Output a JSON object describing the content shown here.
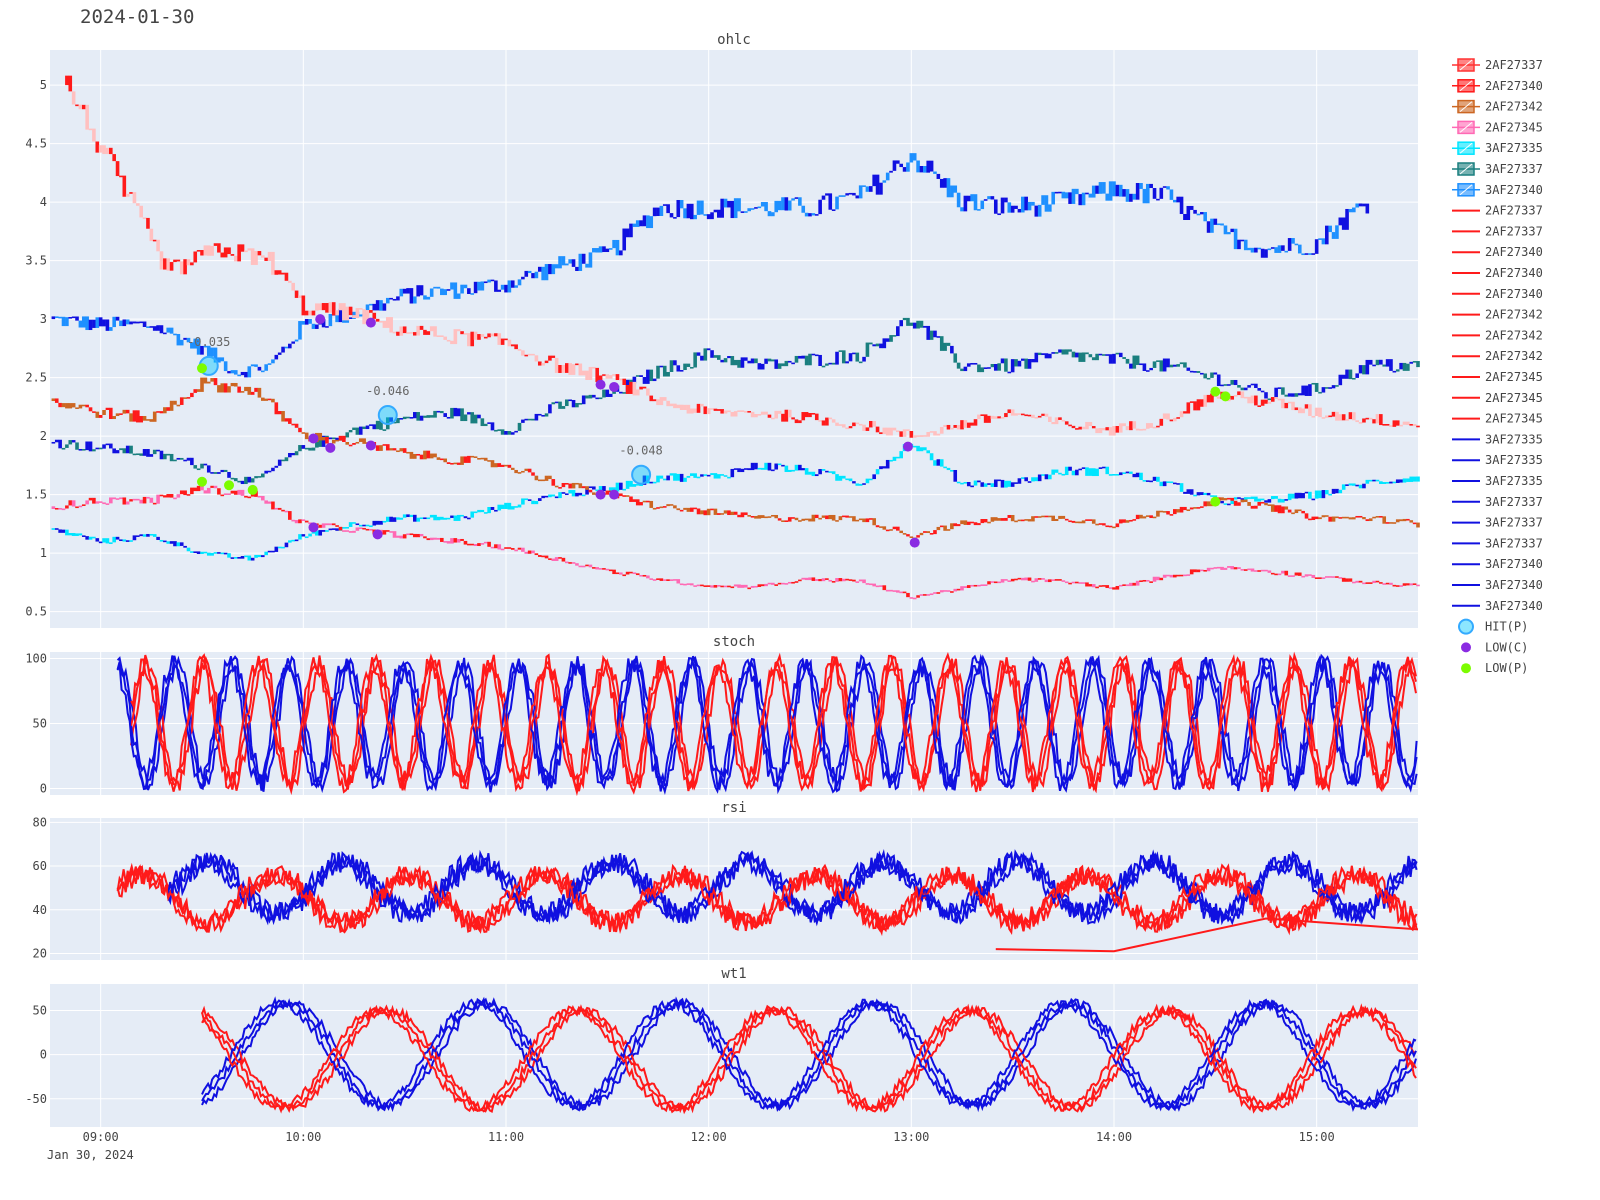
{
  "date_title": "2024-01-30",
  "date_sub": "Jan 30, 2024",
  "time_ticks": [
    "09:00",
    "10:00",
    "11:00",
    "12:00",
    "13:00",
    "14:00",
    "15:00"
  ],
  "panels": {
    "ohlc": {
      "title": "ohlc",
      "yticks": [
        "0.5",
        "1",
        "1.5",
        "2",
        "2.5",
        "3",
        "3.5",
        "4",
        "4.5",
        "5"
      ]
    },
    "stoch": {
      "title": "stoch",
      "yticks": [
        "0",
        "50",
        "100"
      ]
    },
    "rsi": {
      "title": "rsi",
      "yticks": [
        "20",
        "40",
        "60",
        "80"
      ]
    },
    "wt1": {
      "title": "wt1",
      "yticks": [
        "-50",
        "0",
        "50"
      ]
    }
  },
  "colors": {
    "plot_bg": "#e5ecf6",
    "grid": "#ffffff",
    "red": "#ff1a1a",
    "blue": "#1010e0",
    "hit": "#33aaff",
    "low_c": "#8a2be2",
    "low_p": "#7cfc00",
    "light_blue": "#1e90ff",
    "cyan": "#00ffff",
    "teal": "#1a7f7f",
    "orange": "#cc6622",
    "pink": "#ff69b4",
    "pale": "#ffcccc"
  },
  "legend": [
    {
      "label": "2AF27337",
      "kind": "candle",
      "color": "#ff3333"
    },
    {
      "label": "2AF27340",
      "kind": "candle",
      "color": "#ff1a1a"
    },
    {
      "label": "2AF27342",
      "kind": "candle",
      "color": "#cc6622"
    },
    {
      "label": "2AF27345",
      "kind": "candle",
      "color": "#ff69b4"
    },
    {
      "label": "3AF27335",
      "kind": "candle",
      "color": "#00e5ff"
    },
    {
      "label": "3AF27337",
      "kind": "candle",
      "color": "#1a7f7f"
    },
    {
      "label": "3AF27340",
      "kind": "candle",
      "color": "#1e90ff"
    },
    {
      "label": "2AF27337",
      "kind": "line",
      "color": "#ff1a1a"
    },
    {
      "label": "2AF27337",
      "kind": "line",
      "color": "#ff1a1a"
    },
    {
      "label": "2AF27340",
      "kind": "line",
      "color": "#ff1a1a"
    },
    {
      "label": "2AF27340",
      "kind": "line",
      "color": "#ff1a1a"
    },
    {
      "label": "2AF27340",
      "kind": "line",
      "color": "#ff1a1a"
    },
    {
      "label": "2AF27342",
      "kind": "line",
      "color": "#ff1a1a"
    },
    {
      "label": "2AF27342",
      "kind": "line",
      "color": "#ff1a1a"
    },
    {
      "label": "2AF27342",
      "kind": "line",
      "color": "#ff1a1a"
    },
    {
      "label": "2AF27345",
      "kind": "line",
      "color": "#ff1a1a"
    },
    {
      "label": "2AF27345",
      "kind": "line",
      "color": "#ff1a1a"
    },
    {
      "label": "2AF27345",
      "kind": "line",
      "color": "#ff1a1a"
    },
    {
      "label": "3AF27335",
      "kind": "line",
      "color": "#1010e0"
    },
    {
      "label": "3AF27335",
      "kind": "line",
      "color": "#1010e0"
    },
    {
      "label": "3AF27335",
      "kind": "line",
      "color": "#1010e0"
    },
    {
      "label": "3AF27337",
      "kind": "line",
      "color": "#1010e0"
    },
    {
      "label": "3AF27337",
      "kind": "line",
      "color": "#1010e0"
    },
    {
      "label": "3AF27337",
      "kind": "line",
      "color": "#1010e0"
    },
    {
      "label": "3AF27340",
      "kind": "line",
      "color": "#1010e0"
    },
    {
      "label": "3AF27340",
      "kind": "line",
      "color": "#1010e0"
    },
    {
      "label": "3AF27340",
      "kind": "line",
      "color": "#1010e0"
    },
    {
      "label": "HIT(P)",
      "kind": "hit",
      "color": "#33aaff"
    },
    {
      "label": "LOW(C)",
      "kind": "dot",
      "color": "#8a2be2"
    },
    {
      "label": "LOW(P)",
      "kind": "dot",
      "color": "#7cfc00"
    }
  ],
  "chart_data": {
    "type": "line",
    "title": "2024-01-30",
    "x_range": [
      "08:45",
      "15:30"
    ],
    "panels": [
      "ohlc",
      "stoch",
      "rsi",
      "wt1"
    ],
    "ohlc_ylim": [
      0.36,
      5.3
    ],
    "stoch_ylim": [
      -5,
      105
    ],
    "rsi_ylim": [
      17,
      82
    ],
    "wt1_ylim": [
      -82,
      80
    ],
    "price_series": [
      {
        "name": "3AF27340",
        "color": "#1010e0",
        "alt": "#1e90ff",
        "points": [
          [
            "08:46",
            3.0
          ],
          [
            "09:00",
            2.95
          ],
          [
            "09:15",
            2.95
          ],
          [
            "09:30",
            2.75
          ],
          [
            "09:40",
            2.55
          ],
          [
            "09:50",
            2.6
          ],
          [
            "10:00",
            2.95
          ],
          [
            "10:15",
            3.05
          ],
          [
            "10:30",
            3.2
          ],
          [
            "10:45",
            3.25
          ],
          [
            "11:00",
            3.3
          ],
          [
            "11:15",
            3.45
          ],
          [
            "11:30",
            3.55
          ],
          [
            "11:45",
            3.95
          ],
          [
            "12:00",
            3.95
          ],
          [
            "12:15",
            3.95
          ],
          [
            "12:30",
            3.95
          ],
          [
            "12:45",
            4.05
          ],
          [
            "13:00",
            4.4
          ],
          [
            "13:15",
            4.0
          ],
          [
            "13:30",
            3.95
          ],
          [
            "13:45",
            4.0
          ],
          [
            "14:00",
            4.1
          ],
          [
            "14:15",
            4.05
          ],
          [
            "14:30",
            3.75
          ],
          [
            "14:45",
            3.6
          ],
          [
            "15:00",
            3.65
          ],
          [
            "15:10",
            3.9
          ],
          [
            "15:15",
            4.0
          ]
        ]
      },
      {
        "name": "3AF27337",
        "color": "#1010e0",
        "alt": "#1a7f7f",
        "points": [
          [
            "08:46",
            1.95
          ],
          [
            "09:00",
            1.9
          ],
          [
            "09:15",
            1.85
          ],
          [
            "09:30",
            1.75
          ],
          [
            "09:45",
            1.6
          ],
          [
            "10:00",
            1.9
          ],
          [
            "10:15",
            2.05
          ],
          [
            "10:30",
            2.15
          ],
          [
            "10:45",
            2.2
          ],
          [
            "11:00",
            2.05
          ],
          [
            "11:15",
            2.25
          ],
          [
            "11:30",
            2.35
          ],
          [
            "11:45",
            2.55
          ],
          [
            "12:00",
            2.7
          ],
          [
            "12:15",
            2.6
          ],
          [
            "12:30",
            2.65
          ],
          [
            "12:45",
            2.7
          ],
          [
            "13:00",
            3.0
          ],
          [
            "13:15",
            2.6
          ],
          [
            "13:30",
            2.6
          ],
          [
            "13:45",
            2.7
          ],
          [
            "14:00",
            2.65
          ],
          [
            "14:15",
            2.6
          ],
          [
            "14:30",
            2.5
          ],
          [
            "14:45",
            2.35
          ],
          [
            "15:00",
            2.4
          ],
          [
            "15:15",
            2.6
          ],
          [
            "15:30",
            2.6
          ]
        ]
      },
      {
        "name": "3AF27335",
        "color": "#1010e0",
        "alt": "#00e5ff",
        "points": [
          [
            "08:46",
            1.2
          ],
          [
            "09:00",
            1.1
          ],
          [
            "09:15",
            1.15
          ],
          [
            "09:30",
            1.0
          ],
          [
            "09:45",
            0.95
          ],
          [
            "10:00",
            1.15
          ],
          [
            "10:15",
            1.25
          ],
          [
            "10:30",
            1.3
          ],
          [
            "10:45",
            1.3
          ],
          [
            "11:00",
            1.4
          ],
          [
            "11:15",
            1.5
          ],
          [
            "11:30",
            1.55
          ],
          [
            "11:45",
            1.65
          ],
          [
            "12:00",
            1.65
          ],
          [
            "12:15",
            1.75
          ],
          [
            "12:30",
            1.7
          ],
          [
            "12:45",
            1.6
          ],
          [
            "13:00",
            1.95
          ],
          [
            "13:15",
            1.6
          ],
          [
            "13:30",
            1.6
          ],
          [
            "13:45",
            1.7
          ],
          [
            "14:00",
            1.7
          ],
          [
            "14:15",
            1.6
          ],
          [
            "14:30",
            1.45
          ],
          [
            "14:45",
            1.45
          ],
          [
            "15:00",
            1.5
          ],
          [
            "15:15",
            1.6
          ],
          [
            "15:30",
            1.65
          ]
        ]
      },
      {
        "name": "2AF27337",
        "color": "#ff1a1a",
        "alt": "#ffc0c0",
        "points": [
          [
            "08:50",
            5.0
          ],
          [
            "09:20",
            3.4
          ],
          [
            "09:35",
            3.6
          ],
          [
            "09:50",
            3.5
          ],
          [
            "10:00",
            3.1
          ],
          [
            "10:15",
            3.05
          ],
          [
            "10:30",
            2.9
          ],
          [
            "10:45",
            2.85
          ],
          [
            "11:00",
            2.8
          ],
          [
            "11:15",
            2.6
          ],
          [
            "11:30",
            2.5
          ],
          [
            "11:45",
            2.3
          ],
          [
            "12:00",
            2.2
          ],
          [
            "12:15",
            2.2
          ],
          [
            "12:30",
            2.15
          ],
          [
            "12:45",
            2.1
          ],
          [
            "13:00",
            2.0
          ],
          [
            "13:15",
            2.1
          ],
          [
            "13:30",
            2.2
          ],
          [
            "13:45",
            2.1
          ],
          [
            "14:00",
            2.05
          ],
          [
            "14:15",
            2.15
          ],
          [
            "14:30",
            2.35
          ],
          [
            "14:45",
            2.3
          ],
          [
            "15:00",
            2.2
          ],
          [
            "15:15",
            2.15
          ],
          [
            "15:30",
            2.1
          ]
        ]
      },
      {
        "name": "2AF27340",
        "color": "#ff1a1a",
        "alt": "#cc6622",
        "points": [
          [
            "08:46",
            2.3
          ],
          [
            "09:00",
            2.2
          ],
          [
            "09:15",
            2.15
          ],
          [
            "09:30",
            2.45
          ],
          [
            "09:45",
            2.4
          ],
          [
            "10:00",
            2.0
          ],
          [
            "10:15",
            1.95
          ],
          [
            "10:30",
            1.85
          ],
          [
            "10:45",
            1.8
          ],
          [
            "11:00",
            1.75
          ],
          [
            "11:15",
            1.6
          ],
          [
            "11:30",
            1.5
          ],
          [
            "11:45",
            1.4
          ],
          [
            "12:00",
            1.35
          ],
          [
            "12:15",
            1.3
          ],
          [
            "12:30",
            1.3
          ],
          [
            "12:45",
            1.3
          ],
          [
            "13:00",
            1.15
          ],
          [
            "13:15",
            1.25
          ],
          [
            "13:30",
            1.3
          ],
          [
            "13:45",
            1.3
          ],
          [
            "14:00",
            1.25
          ],
          [
            "14:15",
            1.35
          ],
          [
            "14:30",
            1.45
          ],
          [
            "14:45",
            1.4
          ],
          [
            "15:00",
            1.3
          ],
          [
            "15:15",
            1.3
          ],
          [
            "15:30",
            1.25
          ]
        ]
      },
      {
        "name": "2AF27345",
        "color": "#ff1a1a",
        "alt": "#ff69b4",
        "points": [
          [
            "08:46",
            1.4
          ],
          [
            "09:00",
            1.45
          ],
          [
            "09:15",
            1.45
          ],
          [
            "09:30",
            1.55
          ],
          [
            "09:45",
            1.5
          ],
          [
            "10:00",
            1.25
          ],
          [
            "10:15",
            1.2
          ],
          [
            "10:30",
            1.15
          ],
          [
            "10:45",
            1.1
          ],
          [
            "11:00",
            1.05
          ],
          [
            "11:15",
            0.95
          ],
          [
            "11:30",
            0.85
          ],
          [
            "11:45",
            0.78
          ],
          [
            "12:00",
            0.72
          ],
          [
            "12:15",
            0.72
          ],
          [
            "12:30",
            0.78
          ],
          [
            "12:45",
            0.76
          ],
          [
            "13:00",
            0.63
          ],
          [
            "13:15",
            0.7
          ],
          [
            "13:30",
            0.78
          ],
          [
            "13:45",
            0.76
          ],
          [
            "14:00",
            0.7
          ],
          [
            "14:15",
            0.8
          ],
          [
            "14:30",
            0.88
          ],
          [
            "14:45",
            0.85
          ],
          [
            "15:00",
            0.8
          ],
          [
            "15:15",
            0.75
          ],
          [
            "15:30",
            0.72
          ]
        ]
      }
    ],
    "hit_points": [
      {
        "t": "09:32",
        "y": 2.6,
        "label": "-0.035"
      },
      {
        "t": "10:25",
        "y": 2.18,
        "label": "-0.046"
      },
      {
        "t": "11:40",
        "y": 1.67,
        "label": "-0.048"
      }
    ],
    "low_c": [
      [
        "10:05",
        3.0
      ],
      [
        "10:20",
        2.97
      ],
      [
        "10:03",
        1.98
      ],
      [
        "10:08",
        1.9
      ],
      [
        "10:20",
        1.92
      ],
      [
        "10:03",
        1.22
      ],
      [
        "10:22",
        1.16
      ],
      [
        "11:28",
        2.44
      ],
      [
        "11:32",
        2.42
      ],
      [
        "11:28",
        1.5
      ],
      [
        "11:32",
        1.5
      ],
      [
        "12:59",
        1.91
      ],
      [
        "13:01",
        1.09
      ]
    ],
    "low_p": [
      [
        "09:30",
        2.58
      ],
      [
        "09:30",
        1.61
      ],
      [
        "09:38",
        1.58
      ],
      [
        "09:45",
        1.54
      ],
      [
        "14:30",
        2.38
      ],
      [
        "14:33",
        2.34
      ],
      [
        "14:30",
        1.44
      ]
    ],
    "stoch": {
      "cycles": 22,
      "note": "oscillating red and blue lines between 0 and 100"
    },
    "rsi": {
      "red_range": [
        25,
        65
      ],
      "blue_range": [
        25,
        77
      ]
    },
    "wt1": {
      "red_range": [
        -72,
        65
      ],
      "blue_range": [
        -70,
        70
      ]
    }
  }
}
